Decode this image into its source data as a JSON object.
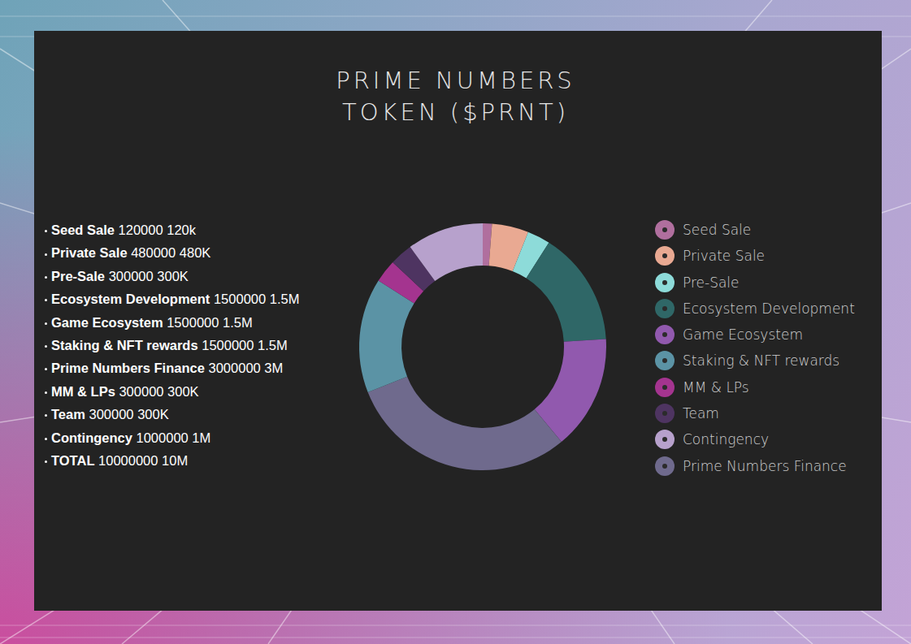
{
  "chart_data": {
    "type": "pie",
    "title": "PRIME NUMBERS\nTOKEN ($PRNT)",
    "categories": [
      "Seed Sale",
      "Private Sale",
      "Pre-Sale",
      "Ecosystem Development",
      "Game Ecosystem",
      "Prime Numbers Finance",
      "Staking & NFT rewards",
      "MM & LPs",
      "Team",
      "Contingency"
    ],
    "values": [
      120000,
      480000,
      300000,
      1500000,
      1500000,
      3000000,
      1500000,
      300000,
      300000,
      1000000
    ],
    "colors": [
      "#b06f9e",
      "#e9a992",
      "#8ddbd9",
      "#2f6767",
      "#9159ae",
      "#6f6a8d",
      "#5b93a5",
      "#a4348f",
      "#4e3461",
      "#b7a1cc"
    ]
  },
  "legend_panel": {
    "entries": [
      "Seed Sale",
      "Private Sale",
      "Pre-Sale",
      "Ecosystem Development",
      "Game Ecosystem",
      "Staking & NFT rewards",
      "MM & LPs",
      "Team",
      "Contingency",
      "Prime Numbers Finance"
    ]
  },
  "allocation_list": {
    "rows": [
      {
        "name": "Seed Sale",
        "amount": 120000,
        "short": "120k"
      },
      {
        "name": "Private Sale",
        "amount": 480000,
        "short": "480K"
      },
      {
        "name": "Pre-Sale",
        "amount": 300000,
        "short": "300K"
      },
      {
        "name": "Ecosystem Development",
        "amount": 1500000,
        "short": "1.5M"
      },
      {
        "name": "Game Ecosystem",
        "amount": 1500000,
        "short": "1.5M"
      },
      {
        "name": "Staking & NFT rewards",
        "amount": 1500000,
        "short": "1.5M"
      },
      {
        "name": "Prime Numbers Finance",
        "amount": 3000000,
        "short": "3M"
      },
      {
        "name": "MM & LPs",
        "amount": 300000,
        "short": "300K"
      },
      {
        "name": "Team",
        "amount": 300000,
        "short": "300K"
      },
      {
        "name": "Contingency",
        "amount": 1000000,
        "short": "1M"
      },
      {
        "name": "TOTAL",
        "amount": 10000000,
        "short": "10M"
      }
    ]
  }
}
